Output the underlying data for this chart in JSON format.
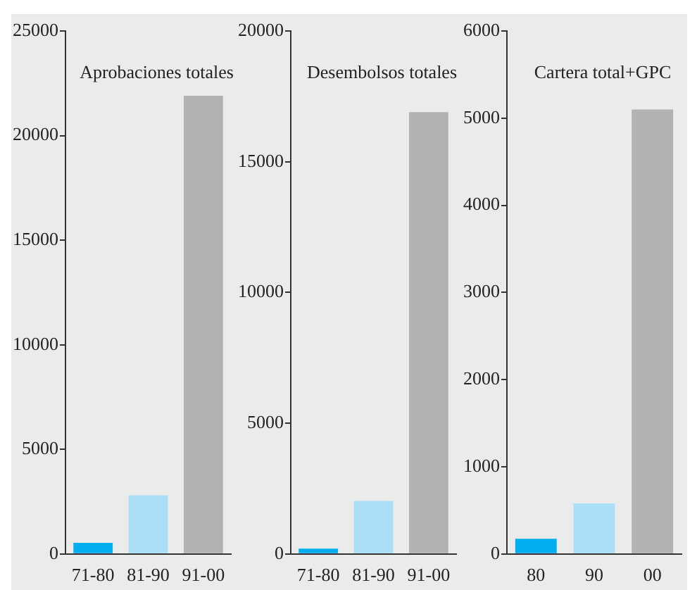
{
  "chart_data": [
    {
      "type": "bar",
      "title": "Aprobaciones totales",
      "categories": [
        "71-80",
        "81-90",
        "91-00"
      ],
      "values": [
        530,
        2800,
        21900
      ],
      "colors": [
        "#00aeef",
        "#aadff7",
        "#b2b2b2"
      ],
      "ylim": [
        0,
        25000
      ],
      "yticks": [
        0,
        5000,
        10000,
        15000,
        20000,
        25000
      ],
      "grid": false
    },
    {
      "type": "bar",
      "title": "Desembolsos totales",
      "categories": [
        "71-80",
        "81-90",
        "91-00"
      ],
      "values": [
        200,
        2030,
        16900
      ],
      "colors": [
        "#00aeef",
        "#aadff7",
        "#b2b2b2"
      ],
      "ylim": [
        0,
        20000
      ],
      "yticks": [
        0,
        5000,
        10000,
        15000,
        20000
      ],
      "grid": false
    },
    {
      "type": "bar",
      "title": "Cartera total+GPC",
      "categories": [
        "80",
        "90",
        "00"
      ],
      "values": [
        175,
        580,
        5100
      ],
      "colors": [
        "#00aeef",
        "#aadff7",
        "#b2b2b2"
      ],
      "ylim": [
        0,
        6000
      ],
      "yticks": [
        0,
        1000,
        2000,
        3000,
        4000,
        5000,
        6000
      ],
      "grid": false
    }
  ]
}
